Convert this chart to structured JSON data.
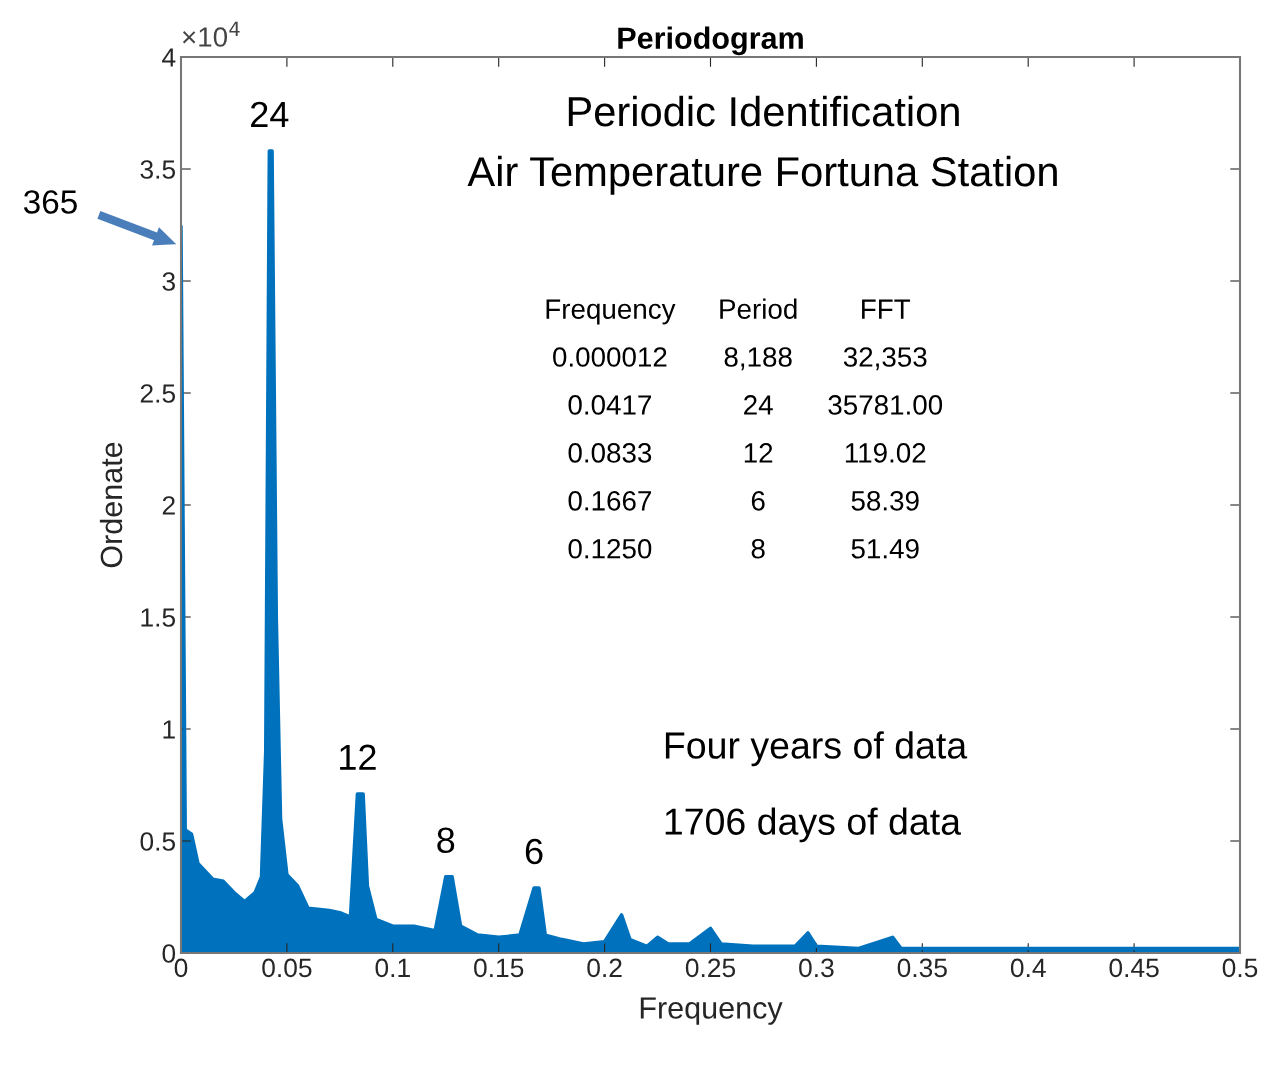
{
  "chart_data": {
    "type": "area",
    "title": "Periodogram",
    "xlabel": "Frequency",
    "ylabel": "Ordenate",
    "x": [
      0,
      0.002,
      0.005,
      0.008,
      0.012,
      0.015,
      0.02,
      0.025,
      0.03,
      0.035,
      0.038,
      0.04,
      0.0417,
      0.043,
      0.045,
      0.047,
      0.05,
      0.055,
      0.06,
      0.07,
      0.075,
      0.08,
      0.0833,
      0.086,
      0.088,
      0.092,
      0.1,
      0.11,
      0.12,
      0.125,
      0.128,
      0.132,
      0.14,
      0.15,
      0.16,
      0.1667,
      0.169,
      0.172,
      0.18,
      0.19,
      0.2,
      0.208,
      0.212,
      0.22,
      0.225,
      0.23,
      0.24,
      0.25,
      0.255,
      0.27,
      0.29,
      0.296,
      0.3,
      0.32,
      0.336,
      0.34,
      0.36,
      0.4,
      0.45,
      0.5
    ],
    "series": [
      {
        "color": "#0072bd",
        "values": [
          3.24,
          0.55,
          0.53,
          0.4,
          0.36,
          0.33,
          0.32,
          0.27,
          0.23,
          0.27,
          0.34,
          0.9,
          3.58,
          3.58,
          1.5,
          0.6,
          0.35,
          0.3,
          0.2,
          0.19,
          0.18,
          0.16,
          0.71,
          0.71,
          0.3,
          0.15,
          0.12,
          0.12,
          0.1,
          0.34,
          0.34,
          0.12,
          0.08,
          0.07,
          0.08,
          0.29,
          0.29,
          0.08,
          0.06,
          0.04,
          0.05,
          0.17,
          0.06,
          0.03,
          0.07,
          0.04,
          0.04,
          0.11,
          0.04,
          0.03,
          0.03,
          0.09,
          0.03,
          0.02,
          0.07,
          0.02,
          0.02,
          0.02,
          0.02,
          0.02
        ]
      }
    ],
    "xlim": [
      0,
      0.5
    ],
    "xticks": [
      0,
      0.05,
      0.1,
      0.15,
      0.2,
      0.25,
      0.3,
      0.35,
      0.4,
      0.45,
      0.5
    ],
    "ylim": [
      0,
      4
    ],
    "yticks": [
      0,
      0.5,
      1,
      1.5,
      2,
      2.5,
      3,
      3.5,
      4
    ],
    "grid": false,
    "legend": false,
    "annotations": [
      "365",
      {
        "text": "24",
        "x": 0.0417,
        "y": 3.58
      },
      {
        "text": "12",
        "x": 0.0833,
        "y": 0.71
      },
      {
        "text": "8",
        "x": 0.125,
        "y": 0.34
      },
      {
        "text": "6",
        "x": 0.1667,
        "y": 0.29
      },
      "×10$^{4}$",
      "Periodic Identification",
      "Air Temperature Fortuna Station",
      "Frequency",
      "Period",
      "FFT",
      "0.000012",
      "8,188",
      "32,353",
      "0.0417",
      "24",
      "35781.00",
      "0.0833",
      "12",
      "119.02",
      "0.1667",
      "6",
      "58.39",
      "0.1250",
      "8",
      "51.49",
      "Four years of data",
      "1706 days of data"
    ]
  }
}
